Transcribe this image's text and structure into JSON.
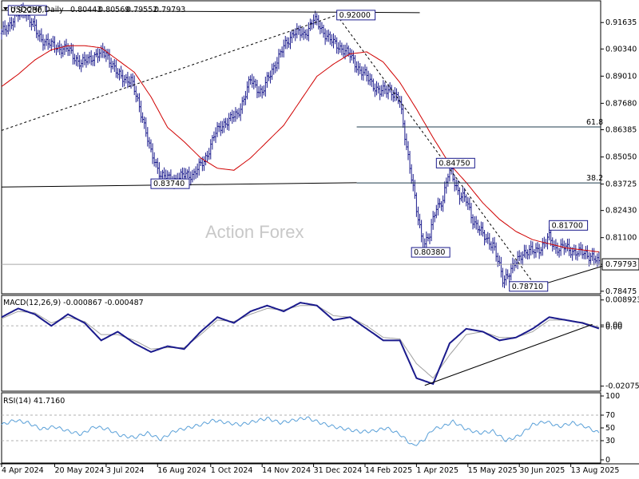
{
  "chart_data": [
    {
      "type": "line",
      "panel": "price",
      "title": "USDCHF,Daily",
      "ohlc": {
        "open": "0.80443",
        "high": "0.80569",
        "low": "0.79552",
        "close": "0.79793"
      },
      "watermark": "Action Forex",
      "ylim": [
        0.7835,
        0.927
      ],
      "y_ticks": [
        "0.91635",
        "0.90340",
        "0.89010",
        "0.87680",
        "0.86385",
        "0.85050",
        "0.83725",
        "0.82430",
        "0.81100",
        "0.79793",
        "0.78475"
      ],
      "y_tick_values": [
        0.91635,
        0.9034,
        0.8901,
        0.8768,
        0.86385,
        0.8505,
        0.83725,
        0.8243,
        0.811,
        0.79793,
        0.78475
      ],
      "current_price_label": "0.79793",
      "current_price": 0.79793,
      "x_ticks": [
        "4 Apr 2024",
        "20 May 2024",
        "3 Jul 2024",
        "16 Aug 2024",
        "1 Oct 2024",
        "14 Nov 2024",
        "31 Dec 2024",
        "14 Feb 2025",
        "1 Apr 2025",
        "15 May 2025",
        "30 Jun 2025",
        "13 Aug 2025"
      ],
      "x_tick_index": [
        0,
        32,
        63,
        94,
        126,
        157,
        188,
        219,
        250,
        281,
        312,
        343
      ],
      "bar_count": 361,
      "series": [
        {
          "color": "#1a1a8c",
          "x": [
            0,
            8,
            14,
            22,
            30,
            40,
            48,
            55,
            63,
            70,
            78,
            85,
            90,
            96,
            102,
            108,
            115,
            122,
            128,
            135,
            142,
            150,
            157,
            164,
            170,
            176,
            182,
            188,
            195,
            200,
            205,
            210,
            216,
            222,
            228,
            234,
            240,
            246,
            250,
            254,
            258,
            262,
            266,
            270,
            276,
            280,
            284,
            290,
            296,
            302,
            308,
            314,
            320,
            326,
            330,
            334,
            340,
            346,
            352,
            356,
            360
          ],
          "y": [
            0.911,
            0.919,
            0.9223,
            0.91,
            0.905,
            0.903,
            0.896,
            0.9,
            0.9015,
            0.8905,
            0.888,
            0.87,
            0.852,
            0.842,
            0.839,
            0.841,
            0.842,
            0.848,
            0.861,
            0.868,
            0.871,
            0.888,
            0.882,
            0.895,
            0.904,
            0.912,
            0.91,
            0.918,
            0.911,
            0.906,
            0.904,
            0.9,
            0.893,
            0.888,
            0.882,
            0.884,
            0.877,
            0.846,
            0.824,
            0.808,
            0.812,
            0.826,
            0.83,
            0.845,
            0.832,
            0.829,
            0.82,
            0.812,
            0.808,
            0.7905,
            0.796,
            0.804,
            0.804,
            0.807,
            0.811,
            0.806,
            0.806,
            0.804,
            0.803,
            0.802,
            0.7979
          ]
        },
        {
          "name": "",
          "color": "#d00000",
          "x": [
            0,
            10,
            20,
            30,
            40,
            50,
            60,
            70,
            80,
            90,
            100,
            110,
            120,
            130,
            140,
            150,
            160,
            170,
            180,
            190,
            200,
            210,
            220,
            230,
            240,
            250,
            260,
            270,
            280,
            290,
            300,
            310,
            320,
            330,
            340,
            350,
            360
          ],
          "y": [
            0.885,
            0.891,
            0.898,
            0.903,
            0.905,
            0.905,
            0.904,
            0.898,
            0.892,
            0.88,
            0.865,
            0.858,
            0.85,
            0.845,
            0.844,
            0.85,
            0.858,
            0.866,
            0.878,
            0.89,
            0.896,
            0.901,
            0.902,
            0.897,
            0.887,
            0.874,
            0.86,
            0.847,
            0.838,
            0.828,
            0.82,
            0.814,
            0.81,
            0.808,
            0.806,
            0.805,
            0.804
          ]
        }
      ],
      "annotations": [
        {
          "text": "0.92000",
          "x": 202,
          "y": 0.92
        },
        {
          "text": "0.92230",
          "x": 4,
          "y": 0.9223
        },
        {
          "text": "0.83740",
          "x": 90,
          "y": 0.8374
        },
        {
          "text": "0.84750",
          "x": 262,
          "y": 0.8475
        },
        {
          "text": "0.80380",
          "x": 247,
          "y": 0.8038
        },
        {
          "text": "0.81700",
          "x": 330,
          "y": 0.817
        },
        {
          "text": "0.78710",
          "x": 306,
          "y": 0.7871
        }
      ],
      "fib_levels": [
        {
          "label": "61.8",
          "value": 0.8652
        },
        {
          "label": "38.2",
          "value": 0.8378
        }
      ],
      "lines": [
        {
          "style": "solid",
          "x": [
            0,
            252
          ],
          "y": [
            0.9223,
            0.9212
          ]
        },
        {
          "style": "solid",
          "x": [
            0,
            214
          ],
          "y": [
            0.8358,
            0.8379
          ]
        },
        {
          "style": "dashed",
          "x": [
            0,
            202
          ],
          "y": [
            0.8635,
            0.92
          ]
        },
        {
          "style": "dashed",
          "x": [
            202,
            322
          ],
          "y": [
            0.92,
            0.7871
          ]
        },
        {
          "style": "solid",
          "x": [
            322,
            370
          ],
          "y": [
            0.7871,
            0.799
          ]
        }
      ]
    },
    {
      "type": "line",
      "panel": "macd",
      "title": "MACD(12,26,9) -0.000867 -0.000487",
      "ylim": [
        -0.0225,
        0.0105
      ],
      "y_ticks": [
        "0.008923",
        "0.00",
        "0.00",
        "-0.020759"
      ],
      "y_tick_values": [
        0.008923,
        0.0003,
        -0.0003,
        -0.020759
      ],
      "series": [
        {
          "color": "#1a1a8c",
          "x": [
            0,
            10,
            20,
            30,
            40,
            50,
            60,
            70,
            80,
            90,
            100,
            110,
            120,
            130,
            140,
            150,
            160,
            170,
            180,
            190,
            200,
            210,
            220,
            230,
            240,
            250,
            260,
            270,
            280,
            290,
            300,
            310,
            320,
            330,
            340,
            350,
            360
          ],
          "y": [
            0.003,
            0.006,
            0.004,
            0.0,
            0.004,
            0.001,
            -0.005,
            -0.002,
            -0.006,
            -0.009,
            -0.007,
            -0.008,
            -0.002,
            0.003,
            0.001,
            0.005,
            0.007,
            0.005,
            0.008,
            0.007,
            0.002,
            0.003,
            -0.001,
            -0.005,
            -0.005,
            -0.018,
            -0.02,
            -0.006,
            -0.001,
            -0.002,
            -0.005,
            -0.004,
            -0.001,
            0.003,
            0.002,
            0.001,
            -0.0009
          ]
        },
        {
          "color": "#a0a0a0",
          "x": [
            0,
            10,
            20,
            30,
            40,
            50,
            60,
            70,
            80,
            90,
            100,
            110,
            120,
            130,
            140,
            150,
            160,
            170,
            180,
            190,
            200,
            210,
            220,
            230,
            240,
            250,
            260,
            270,
            280,
            290,
            300,
            310,
            320,
            330,
            340,
            350,
            360
          ],
          "y": [
            0.0025,
            0.005,
            0.0045,
            0.001,
            0.003,
            0.0015,
            -0.003,
            -0.003,
            -0.005,
            -0.008,
            -0.0075,
            -0.0075,
            -0.003,
            0.002,
            0.0015,
            0.004,
            0.006,
            0.0055,
            0.007,
            0.007,
            0.0035,
            0.003,
            0.0,
            -0.004,
            -0.0045,
            -0.013,
            -0.018,
            -0.01,
            -0.003,
            -0.002,
            -0.004,
            -0.004,
            -0.002,
            0.002,
            0.002,
            0.0012,
            -0.0005
          ]
        }
      ],
      "lines": [
        {
          "style": "solid",
          "x": [
            255,
            356
          ],
          "y": [
            -0.0205,
            0.0005
          ]
        }
      ]
    },
    {
      "type": "line",
      "panel": "rsi",
      "title": "RSI(14) 41.7160",
      "ylim": [
        -5,
        105
      ],
      "y_ticks": [
        "100",
        "70",
        "50",
        "30",
        "0"
      ],
      "y_tick_values": [
        100,
        70,
        50,
        30,
        0
      ],
      "levels": [
        70,
        30
      ],
      "series": [
        {
          "color": "#5aa0d8",
          "x": [
            0,
            8,
            16,
            24,
            32,
            40,
            48,
            56,
            64,
            72,
            80,
            88,
            96,
            104,
            112,
            120,
            128,
            136,
            144,
            152,
            160,
            168,
            176,
            184,
            192,
            200,
            208,
            216,
            224,
            232,
            240,
            248,
            254,
            260,
            266,
            272,
            280,
            288,
            296,
            304,
            312,
            320,
            328,
            336,
            344,
            352,
            360
          ],
          "y": [
            55,
            62,
            58,
            48,
            52,
            45,
            40,
            52,
            48,
            38,
            35,
            42,
            32,
            45,
            50,
            55,
            62,
            58,
            55,
            60,
            65,
            58,
            62,
            66,
            58,
            52,
            48,
            44,
            45,
            50,
            40,
            22,
            30,
            48,
            52,
            60,
            48,
            42,
            45,
            30,
            38,
            55,
            60,
            52,
            58,
            52,
            42
          ]
        }
      ]
    }
  ]
}
